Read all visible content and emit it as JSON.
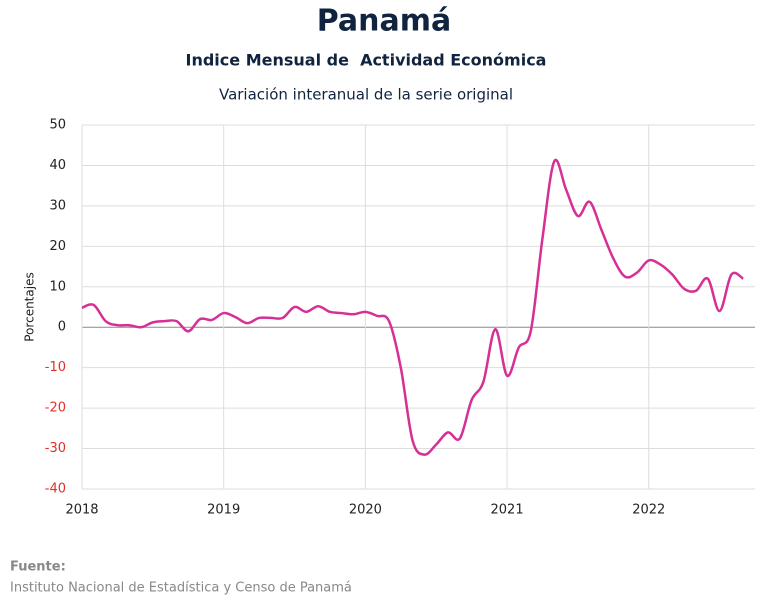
{
  "chart_data": {
    "type": "line",
    "title": "Panamá",
    "subtitle": "Indice Mensual de  Actividad Económica",
    "subtitle2": "Variación interanual de la serie original",
    "y_label": "Porcentajes",
    "source_label": "Fuente:",
    "source": "Instituto Nacional de Estadística y Censo de Panamá",
    "x": [
      2018,
      2018.083,
      2018.167,
      2018.25,
      2018.333,
      2018.417,
      2018.5,
      2018.583,
      2018.667,
      2018.75,
      2018.833,
      2018.917,
      2019,
      2019.083,
      2019.167,
      2019.25,
      2019.333,
      2019.417,
      2019.5,
      2019.583,
      2019.667,
      2019.75,
      2019.833,
      2019.917,
      2020,
      2020.083,
      2020.167,
      2020.25,
      2020.333,
      2020.417,
      2020.5,
      2020.583,
      2020.667,
      2020.75,
      2020.833,
      2020.917,
      2021,
      2021.083,
      2021.167,
      2021.25,
      2021.333,
      2021.417,
      2021.5,
      2021.583,
      2021.667,
      2021.75,
      2021.833,
      2021.917,
      2022,
      2022.083,
      2022.167,
      2022.25,
      2022.333,
      2022.417,
      2022.5,
      2022.583,
      2022.667
    ],
    "series": [
      {
        "name": "Variación interanual",
        "color": "#d62f96",
        "values": [
          4.8,
          5.5,
          1.5,
          0.5,
          0.5,
          0,
          1.2,
          1.5,
          1.5,
          -1,
          2,
          1.8,
          3.5,
          2.5,
          1,
          2.3,
          2.3,
          2.3,
          5,
          3.8,
          5.2,
          3.8,
          3.5,
          3.2,
          3.8,
          2.8,
          1.5,
          -10,
          -28,
          -31.5,
          -29,
          -26,
          -27.5,
          -18,
          -13.5,
          -0.5,
          -12,
          -5,
          -1,
          22,
          41,
          34,
          27.5,
          31,
          24,
          17,
          12.5,
          13.5,
          16.5,
          15.5,
          13,
          9.5,
          9,
          12,
          4,
          13,
          12
        ]
      }
    ],
    "xlim": [
      2018,
      2022.75
    ],
    "xticks": [
      2018,
      2019,
      2020,
      2021,
      2022
    ],
    "ylim": [
      -40,
      50
    ],
    "yticks": [
      -40,
      -30,
      -20,
      -10,
      0,
      10,
      20,
      30,
      40,
      50
    ],
    "negative_tick_color": "#e0302a",
    "grid": true
  }
}
